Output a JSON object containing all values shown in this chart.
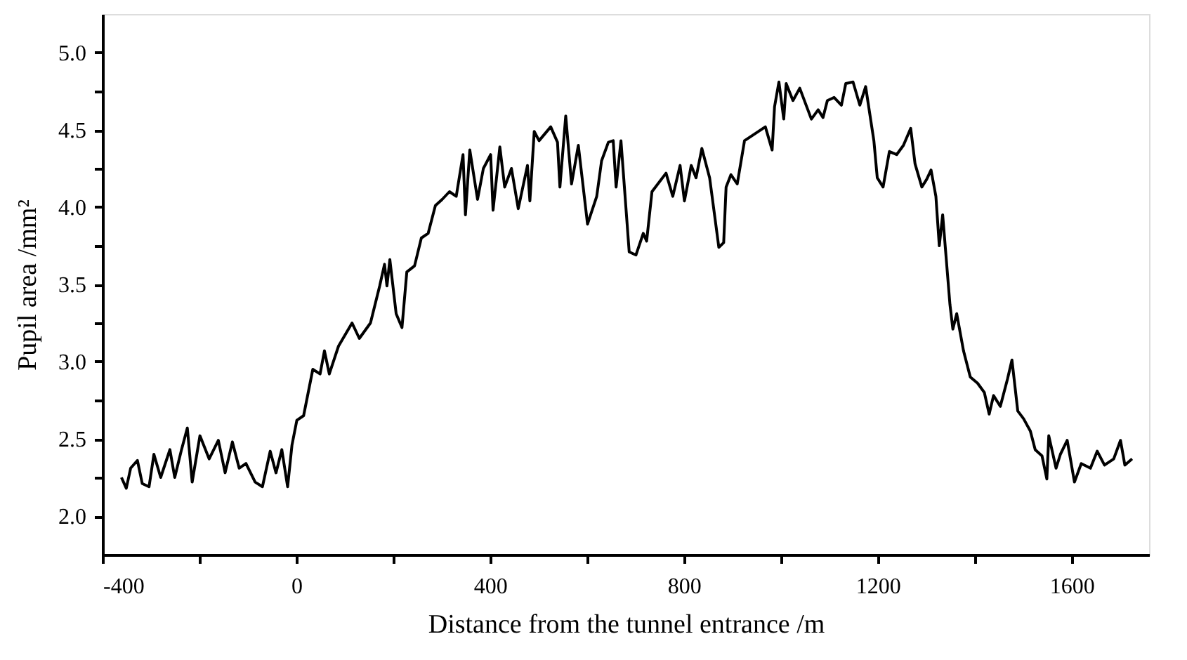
{
  "chart_data": {
    "type": "line",
    "xlabel": "Distance from the tunnel entrance /m",
    "ylabel": "Pupil area /mm²",
    "xlim": [
      -400,
      1760
    ],
    "ylim": [
      1.75,
      5.25
    ],
    "xticks": [
      -400,
      {
        "value": -200,
        "label": null
      },
      0,
      {
        "value": 200,
        "label": null
      },
      400,
      {
        "value": 600,
        "label": null
      },
      800,
      {
        "value": 1000,
        "label": null
      },
      1200,
      {
        "value": 1400,
        "label": null
      },
      1600
    ],
    "yticks": [
      {
        "value": 2.0,
        "label": "2.0"
      },
      {
        "value": 2.25,
        "label": null
      },
      {
        "value": 2.5,
        "label": "2.5"
      },
      {
        "value": 2.75,
        "label": null
      },
      {
        "value": 3.0,
        "label": "3.0"
      },
      {
        "value": 3.25,
        "label": null
      },
      {
        "value": 3.5,
        "label": "3.5"
      },
      {
        "value": 3.75,
        "label": null
      },
      {
        "value": 4.0,
        "label": "4.0"
      },
      {
        "value": 4.25,
        "label": null
      },
      {
        "value": 4.5,
        "label": "4.5"
      },
      {
        "value": 4.75,
        "label": null
      },
      {
        "value": 5.0,
        "label": "5.0"
      }
    ],
    "grid": false,
    "legend": false,
    "series": [
      {
        "color": "#000000",
        "x": [
          -361,
          -351,
          -342,
          -328,
          -318,
          -304,
          -294,
          -280,
          -261,
          -251,
          -237,
          -225,
          -215,
          -199,
          -180,
          -161,
          -147,
          -132,
          -118,
          -104,
          -85,
          -70,
          -54,
          -42,
          -30,
          -18,
          -9,
          1,
          15,
          34,
          49,
          58,
          68,
          87,
          115,
          130,
          153,
          172,
          182,
          187,
          193,
          206,
          218,
          228,
          244,
          258,
          272,
          287,
          301,
          316,
          330,
          344,
          349,
          358,
          374,
          386,
          401,
          406,
          420,
          430,
          444,
          458,
          477,
          482,
          491,
          501,
          525,
          539,
          544,
          556,
          568,
          582,
          601,
          620,
          630,
          644,
          654,
          660,
          670,
          687,
          701,
          716,
          723,
          734,
          763,
          777,
          792,
          801,
          815,
          825,
          837,
          853,
          872,
          882,
          887,
          897,
          910,
          925,
          949,
          968,
          982,
          987,
          996,
          1006,
          1011,
          1025,
          1039,
          1063,
          1077,
          1087,
          1096,
          1110,
          1125,
          1134,
          1149,
          1163,
          1175,
          1192,
          1199,
          1211,
          1224,
          1239,
          1253,
          1268,
          1277,
          1291,
          1301,
          1310,
          1320,
          1327,
          1334,
          1349,
          1355,
          1363,
          1377,
          1391,
          1406,
          1420,
          1430,
          1439,
          1453,
          1468,
          1477,
          1489,
          1501,
          1515,
          1525,
          1539,
          1549,
          1553,
          1568,
          1577,
          1591,
          1606,
          1620,
          1639,
          1653,
          1668,
          1687,
          1701,
          1710,
          1725
        ],
        "values": [
          2.25,
          2.18,
          2.31,
          2.36,
          2.21,
          2.19,
          2.4,
          2.25,
          2.43,
          2.25,
          2.43,
          2.57,
          2.22,
          2.52,
          2.37,
          2.49,
          2.28,
          2.48,
          2.31,
          2.34,
          2.22,
          2.19,
          2.42,
          2.28,
          2.43,
          2.19,
          2.46,
          2.62,
          2.65,
          2.95,
          2.92,
          3.07,
          2.92,
          3.1,
          3.25,
          3.15,
          3.25,
          3.49,
          3.63,
          3.49,
          3.66,
          3.31,
          3.22,
          3.58,
          3.62,
          3.8,
          3.83,
          4.01,
          4.05,
          4.1,
          4.07,
          4.34,
          3.95,
          4.37,
          4.05,
          4.25,
          4.34,
          3.98,
          4.39,
          4.13,
          4.25,
          3.99,
          4.27,
          4.04,
          4.49,
          4.43,
          4.52,
          4.42,
          4.13,
          4.59,
          4.15,
          4.4,
          3.89,
          4.07,
          4.3,
          4.42,
          4.43,
          4.13,
          4.43,
          3.71,
          3.69,
          3.83,
          3.78,
          4.1,
          4.22,
          4.07,
          4.27,
          4.04,
          4.27,
          4.19,
          4.38,
          4.19,
          3.74,
          3.77,
          4.13,
          4.21,
          4.15,
          4.43,
          4.48,
          4.52,
          4.37,
          4.65,
          4.81,
          4.57,
          4.8,
          4.69,
          4.77,
          4.57,
          4.63,
          4.58,
          4.69,
          4.71,
          4.66,
          4.8,
          4.81,
          4.66,
          4.78,
          4.43,
          4.19,
          4.13,
          4.36,
          4.34,
          4.4,
          4.51,
          4.28,
          4.13,
          4.18,
          4.24,
          4.07,
          3.75,
          3.95,
          3.37,
          3.21,
          3.31,
          3.07,
          2.9,
          2.86,
          2.8,
          2.66,
          2.78,
          2.71,
          2.89,
          3.01,
          2.68,
          2.63,
          2.55,
          2.43,
          2.39,
          2.24,
          2.52,
          2.31,
          2.4,
          2.49,
          2.22,
          2.34,
          2.31,
          2.42,
          2.33,
          2.37,
          2.49,
          2.33,
          2.37
        ]
      }
    ]
  }
}
